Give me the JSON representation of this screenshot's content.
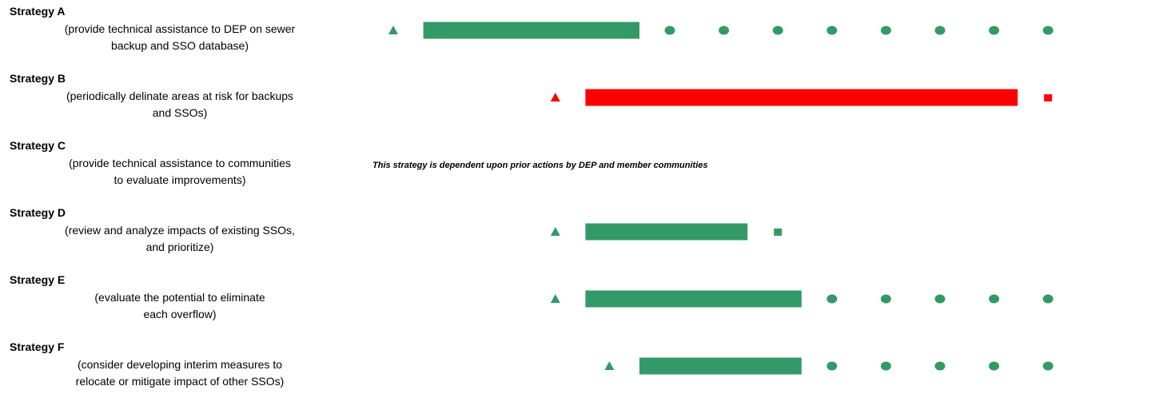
{
  "chart_data": {
    "type": "timeline",
    "title": "",
    "colors": {
      "on_track": "#339966",
      "behind": "#ff0000"
    },
    "symbols": {
      "start": "triangle",
      "active": "bar",
      "ongoing": "dot",
      "end": "square"
    },
    "slots": 14,
    "rows": [
      {
        "id": "A",
        "label": "Strategy A",
        "description": [
          "(provide technical assistance to DEP on sewer",
          "backup and SSO database)"
        ],
        "color": "on_track",
        "start_marker": 1,
        "bar": [
          2,
          6
        ],
        "ongoing": [
          6,
          7,
          8,
          9,
          10,
          11,
          12,
          13
        ]
      },
      {
        "id": "B",
        "label": "Strategy B",
        "description": [
          "(periodically delinate areas at risk for backups",
          "and SSOs)"
        ],
        "color": "behind",
        "start_marker": 4,
        "bar": [
          5,
          13
        ],
        "end_marker": 13
      },
      {
        "id": "C",
        "label": "Strategy C",
        "description": [
          "(provide technical assistance to communities",
          "to evaluate improvements)"
        ],
        "note": "This strategy is dependent upon prior actions by DEP and member communities"
      },
      {
        "id": "D",
        "label": "Strategy D",
        "description": [
          "(review and analyze impacts of existing SSOs,",
          "and prioritize)"
        ],
        "color": "on_track",
        "start_marker": 4,
        "bar": [
          5,
          8
        ],
        "end_marker": 8
      },
      {
        "id": "E",
        "label": "Strategy E",
        "description": [
          "(evaluate the potential to eliminate",
          "each overflow)"
        ],
        "color": "on_track",
        "start_marker": 4,
        "bar": [
          5,
          9
        ],
        "ongoing": [
          9,
          10,
          11,
          12,
          13
        ]
      },
      {
        "id": "F",
        "label": "Strategy F",
        "description": [
          "(consider developing interim measures to",
          "relocate or mitigate impact of other SSOs)"
        ],
        "color": "on_track",
        "start_marker": 5,
        "bar": [
          6,
          9
        ],
        "ongoing": [
          9,
          10,
          11,
          12,
          13
        ]
      }
    ]
  }
}
